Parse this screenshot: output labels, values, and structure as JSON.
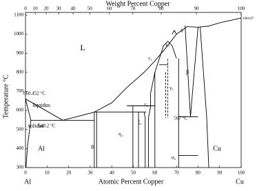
{
  "chart_data": {
    "type": "line",
    "title": "Weight Percent Copper",
    "xlabel": "Atomic Percent Copper",
    "ylabel": "Temperature °C",
    "x_end_labels": [
      "Al",
      "Cu"
    ],
    "xlim": [
      0,
      100
    ],
    "xticks": [
      0,
      10,
      20,
      30,
      40,
      50,
      60,
      70,
      80,
      90,
      100
    ],
    "x2lim": [
      0,
      100
    ],
    "x2ticks": [
      0,
      10,
      20,
      30,
      40,
      50,
      60,
      70,
      80,
      90,
      100
    ],
    "ylim": [
      300,
      1100
    ],
    "yticks": [
      300,
      400,
      500,
      600,
      700,
      800,
      900,
      1000,
      1100
    ],
    "annotations": [
      "L",
      "liquidus",
      "solidus",
      "660.452 °C",
      "548.2 °C",
      "567 °C",
      "Al",
      "Cu",
      "1084.87",
      "θ",
      "η₂",
      "ζ₁",
      "ε₂",
      "ε₁",
      "γ₀",
      "γ₁",
      "δ",
      "β",
      "α₂"
    ],
    "series": [
      {
        "color": "#000",
        "x": [
          0,
          17.3
        ],
        "values": [
          660.452,
          548.2
        ]
      },
      {
        "color": "#000",
        "x": [
          17.3,
          31.9,
          40,
          47,
          55,
          60,
          65,
          70,
          75,
          80,
          85,
          90,
          100
        ],
        "values": [
          548.2,
          591,
          640,
          720,
          800,
          860,
          927,
          1000,
          1040,
          1037,
          1043,
          1060,
          1084.87
        ]
      },
      {
        "color": "#000",
        "x": [
          2.5,
          31.9
        ],
        "values": [
          548.2,
          548.2
        ]
      },
      {
        "color": "#000",
        "x": [
          0,
          2.5
        ],
        "values": [
          660.452,
          548.2
        ]
      },
      {
        "color": "#000",
        "x": [
          0.2,
          1,
          2.5
        ],
        "values": [
          300,
          420,
          548.2
        ]
      },
      {
        "color": "#000",
        "x": [
          31.9,
          31.9
        ],
        "values": [
          300,
          591
        ]
      },
      {
        "color": "#000",
        "x": [
          33,
          33
        ],
        "values": [
          300,
          591
        ]
      },
      {
        "color": "#000",
        "x": [
          31.9,
          56
        ],
        "values": [
          591,
          591
        ]
      },
      {
        "color": "#000",
        "x": [
          47,
          60
        ],
        "values": [
          624,
          624
        ]
      },
      {
        "color": "#000",
        "x": [
          49.8,
          49.8
        ],
        "values": [
          300,
          624
        ]
      },
      {
        "color": "#000",
        "x": [
          52.4,
          52.4
        ],
        "values": [
          300,
          591
        ]
      },
      {
        "color": "#000",
        "x": [
          55,
          55.5,
          55.5
        ],
        "values": [
          591,
          560,
          300
        ]
      },
      {
        "color": "#000",
        "x": [
          57,
          57,
          58,
          58
        ],
        "values": [
          300,
          560,
          620,
          690
        ]
      },
      {
        "color": "#000",
        "x": [
          58,
          60,
          64,
          66,
          68,
          70
        ],
        "values": [
          690,
          800,
          940,
          963,
          940,
          873
        ]
      },
      {
        "color": "#000",
        "x": [
          60,
          60
        ],
        "values": [
          300,
          800
        ]
      },
      {
        "color": "#000",
        "x": [
          62,
          66
        ],
        "values": [
          840,
          840
        ]
      },
      {
        "color": "#000",
        "x": [
          65,
          65
        ],
        "values": [
          800,
          560
        ],
        "dash": true
      },
      {
        "color": "#000",
        "x": [
          66,
          66
        ],
        "values": [
          870,
          560
        ],
        "dash": true
      },
      {
        "color": "#000",
        "x": [
          68,
          69,
          70
        ],
        "values": [
          1000,
          1020,
          1000
        ]
      },
      {
        "color": "#000",
        "x": [
          74,
          76.5,
          80
        ],
        "values": [
          1045,
          567,
          1037
        ]
      },
      {
        "color": "#000",
        "x": [
          71,
          80
        ],
        "values": [
          567,
          567
        ]
      },
      {
        "color": "#000",
        "x": [
          81,
          84,
          85
        ],
        "values": [
          1037,
          567,
          300
        ]
      },
      {
        "color": "#000",
        "x": [
          71,
          80
        ],
        "values": [
          363,
          363
        ]
      },
      {
        "color": "#000",
        "x": [
          71,
          71
        ],
        "values": [
          300,
          873
        ]
      }
    ]
  }
}
